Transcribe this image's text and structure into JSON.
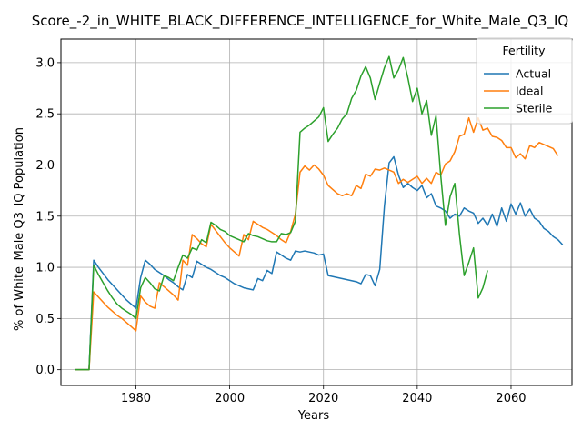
{
  "chart_data": {
    "type": "line",
    "title": "Score_-2_in_WHITE_BLACK_DIFFERENCE_INTELLIGENCE_for_White_Male_Q3_IQ",
    "xlabel": "Years",
    "ylabel": "% of White_Male Q3_IQ Population",
    "xlim": [
      1964,
      2073
    ],
    "ylim": [
      -0.154,
      3.23
    ],
    "xticks": [
      1980,
      2000,
      2020,
      2040,
      2060
    ],
    "yticks": [
      0.0,
      0.5,
      1.0,
      1.5,
      2.0,
      2.5,
      3.0
    ],
    "xtick_labels": [
      "1980",
      "2000",
      "2020",
      "2040",
      "2060"
    ],
    "ytick_labels": [
      "0.0",
      "0.5",
      "1.0",
      "1.5",
      "2.0",
      "2.5",
      "3.0"
    ],
    "grid": true,
    "legend": {
      "title": "Fertility",
      "placement": "upper-right"
    },
    "series": [
      {
        "name": "Actual",
        "color": "#1f77b4",
        "points": [
          [
            1967,
            0.0
          ],
          [
            1968,
            0.0
          ],
          [
            1969,
            0.0
          ],
          [
            1970,
            0.0
          ],
          [
            1971,
            1.07
          ],
          [
            1972,
            1.0
          ],
          [
            1973,
            0.94
          ],
          [
            1974,
            0.88
          ],
          [
            1975,
            0.83
          ],
          [
            1976,
            0.78
          ],
          [
            1977,
            0.73
          ],
          [
            1978,
            0.68
          ],
          [
            1979,
            0.64
          ],
          [
            1980,
            0.6
          ],
          [
            1981,
            0.9
          ],
          [
            1982,
            1.07
          ],
          [
            1983,
            1.03
          ],
          [
            1984,
            0.98
          ],
          [
            1985,
            0.95
          ],
          [
            1986,
            0.92
          ],
          [
            1987,
            0.88
          ],
          [
            1988,
            0.85
          ],
          [
            1989,
            0.81
          ],
          [
            1990,
            0.78
          ],
          [
            1991,
            0.93
          ],
          [
            1992,
            0.9
          ],
          [
            1993,
            1.06
          ],
          [
            1994,
            1.03
          ],
          [
            1995,
            1.0
          ],
          [
            1996,
            0.98
          ],
          [
            1997,
            0.95
          ],
          [
            1998,
            0.92
          ],
          [
            1999,
            0.9
          ],
          [
            2000,
            0.87
          ],
          [
            2001,
            0.84
          ],
          [
            2002,
            0.82
          ],
          [
            2003,
            0.8
          ],
          [
            2004,
            0.79
          ],
          [
            2005,
            0.78
          ],
          [
            2006,
            0.89
          ],
          [
            2007,
            0.87
          ],
          [
            2008,
            0.97
          ],
          [
            2009,
            0.94
          ],
          [
            2010,
            1.15
          ],
          [
            2011,
            1.12
          ],
          [
            2012,
            1.09
          ],
          [
            2013,
            1.07
          ],
          [
            2014,
            1.16
          ],
          [
            2015,
            1.15
          ],
          [
            2016,
            1.16
          ],
          [
            2017,
            1.15
          ],
          [
            2018,
            1.14
          ],
          [
            2019,
            1.12
          ],
          [
            2020,
            1.13
          ],
          [
            2021,
            0.92
          ],
          [
            2022,
            0.91
          ],
          [
            2023,
            0.9
          ],
          [
            2024,
            0.89
          ],
          [
            2025,
            0.88
          ],
          [
            2026,
            0.87
          ],
          [
            2027,
            0.86
          ],
          [
            2028,
            0.84
          ],
          [
            2029,
            0.93
          ],
          [
            2030,
            0.92
          ],
          [
            2031,
            0.82
          ],
          [
            2032,
            0.98
          ],
          [
            2033,
            1.6
          ],
          [
            2034,
            2.02
          ],
          [
            2035,
            2.08
          ],
          [
            2036,
            1.9
          ],
          [
            2037,
            1.78
          ],
          [
            2038,
            1.82
          ],
          [
            2039,
            1.78
          ],
          [
            2040,
            1.75
          ],
          [
            2041,
            1.8
          ],
          [
            2042,
            1.68
          ],
          [
            2043,
            1.72
          ],
          [
            2044,
            1.6
          ],
          [
            2045,
            1.58
          ],
          [
            2046,
            1.55
          ],
          [
            2047,
            1.48
          ],
          [
            2048,
            1.52
          ],
          [
            2049,
            1.5
          ],
          [
            2050,
            1.58
          ],
          [
            2051,
            1.55
          ],
          [
            2052,
            1.53
          ],
          [
            2053,
            1.43
          ],
          [
            2054,
            1.48
          ],
          [
            2055,
            1.41
          ],
          [
            2056,
            1.52
          ],
          [
            2057,
            1.4
          ],
          [
            2058,
            1.58
          ],
          [
            2059,
            1.45
          ],
          [
            2060,
            1.62
          ],
          [
            2061,
            1.52
          ],
          [
            2062,
            1.63
          ],
          [
            2063,
            1.5
          ],
          [
            2064,
            1.57
          ],
          [
            2065,
            1.48
          ],
          [
            2066,
            1.45
          ],
          [
            2067,
            1.38
          ],
          [
            2068,
            1.35
          ],
          [
            2069,
            1.3
          ],
          [
            2070,
            1.27
          ],
          [
            2071,
            1.22
          ]
        ]
      },
      {
        "name": "Ideal",
        "color": "#ff7f0e",
        "points": [
          [
            1967,
            0.0
          ],
          [
            1968,
            0.0
          ],
          [
            1969,
            0.0
          ],
          [
            1970,
            0.0
          ],
          [
            1971,
            0.76
          ],
          [
            1972,
            0.71
          ],
          [
            1973,
            0.66
          ],
          [
            1974,
            0.61
          ],
          [
            1975,
            0.57
          ],
          [
            1976,
            0.53
          ],
          [
            1977,
            0.5
          ],
          [
            1978,
            0.46
          ],
          [
            1979,
            0.42
          ],
          [
            1980,
            0.38
          ],
          [
            1981,
            0.72
          ],
          [
            1982,
            0.66
          ],
          [
            1983,
            0.62
          ],
          [
            1984,
            0.6
          ],
          [
            1985,
            0.85
          ],
          [
            1986,
            0.81
          ],
          [
            1987,
            0.77
          ],
          [
            1988,
            0.73
          ],
          [
            1989,
            0.68
          ],
          [
            1990,
            1.07
          ],
          [
            1991,
            1.02
          ],
          [
            1992,
            1.32
          ],
          [
            1993,
            1.28
          ],
          [
            1994,
            1.23
          ],
          [
            1995,
            1.2
          ],
          [
            1996,
            1.42
          ],
          [
            1997,
            1.36
          ],
          [
            1998,
            1.3
          ],
          [
            1999,
            1.24
          ],
          [
            2000,
            1.19
          ],
          [
            2001,
            1.15
          ],
          [
            2002,
            1.11
          ],
          [
            2003,
            1.32
          ],
          [
            2004,
            1.27
          ],
          [
            2005,
            1.45
          ],
          [
            2006,
            1.42
          ],
          [
            2007,
            1.39
          ],
          [
            2008,
            1.37
          ],
          [
            2009,
            1.34
          ],
          [
            2010,
            1.31
          ],
          [
            2011,
            1.27
          ],
          [
            2012,
            1.24
          ],
          [
            2013,
            1.35
          ],
          [
            2014,
            1.52
          ],
          [
            2015,
            1.93
          ],
          [
            2016,
            1.99
          ],
          [
            2017,
            1.95
          ],
          [
            2018,
            2.0
          ],
          [
            2019,
            1.96
          ],
          [
            2020,
            1.9
          ],
          [
            2021,
            1.8
          ],
          [
            2022,
            1.76
          ],
          [
            2023,
            1.72
          ],
          [
            2024,
            1.7
          ],
          [
            2025,
            1.72
          ],
          [
            2026,
            1.7
          ],
          [
            2027,
            1.8
          ],
          [
            2028,
            1.77
          ],
          [
            2029,
            1.91
          ],
          [
            2030,
            1.89
          ],
          [
            2031,
            1.96
          ],
          [
            2032,
            1.95
          ],
          [
            2033,
            1.97
          ],
          [
            2034,
            1.95
          ],
          [
            2035,
            1.93
          ],
          [
            2036,
            1.82
          ],
          [
            2037,
            1.86
          ],
          [
            2038,
            1.83
          ],
          [
            2039,
            1.86
          ],
          [
            2040,
            1.89
          ],
          [
            2041,
            1.82
          ],
          [
            2042,
            1.87
          ],
          [
            2043,
            1.82
          ],
          [
            2044,
            1.93
          ],
          [
            2045,
            1.9
          ],
          [
            2046,
            2.01
          ],
          [
            2047,
            2.04
          ],
          [
            2048,
            2.13
          ],
          [
            2049,
            2.28
          ],
          [
            2050,
            2.3
          ],
          [
            2051,
            2.46
          ],
          [
            2052,
            2.32
          ],
          [
            2053,
            2.46
          ],
          [
            2054,
            2.34
          ],
          [
            2055,
            2.36
          ],
          [
            2056,
            2.28
          ],
          [
            2057,
            2.27
          ],
          [
            2058,
            2.24
          ],
          [
            2059,
            2.17
          ],
          [
            2060,
            2.17
          ],
          [
            2061,
            2.07
          ],
          [
            2062,
            2.11
          ],
          [
            2063,
            2.06
          ],
          [
            2064,
            2.19
          ],
          [
            2065,
            2.17
          ],
          [
            2066,
            2.22
          ],
          [
            2067,
            2.2
          ],
          [
            2068,
            2.18
          ],
          [
            2069,
            2.16
          ],
          [
            2070,
            2.09
          ]
        ]
      },
      {
        "name": "Sterile",
        "color": "#2ca02c",
        "points": [
          [
            1967,
            0.0
          ],
          [
            1968,
            0.0
          ],
          [
            1969,
            0.0
          ],
          [
            1970,
            0.0
          ],
          [
            1971,
            1.02
          ],
          [
            1972,
            0.93
          ],
          [
            1973,
            0.85
          ],
          [
            1974,
            0.77
          ],
          [
            1975,
            0.7
          ],
          [
            1976,
            0.64
          ],
          [
            1977,
            0.6
          ],
          [
            1978,
            0.57
          ],
          [
            1979,
            0.54
          ],
          [
            1980,
            0.5
          ],
          [
            1981,
            0.8
          ],
          [
            1982,
            0.9
          ],
          [
            1983,
            0.85
          ],
          [
            1984,
            0.79
          ],
          [
            1985,
            0.77
          ],
          [
            1986,
            0.92
          ],
          [
            1987,
            0.9
          ],
          [
            1988,
            0.87
          ],
          [
            1989,
            1.0
          ],
          [
            1990,
            1.12
          ],
          [
            1991,
            1.09
          ],
          [
            1992,
            1.19
          ],
          [
            1993,
            1.17
          ],
          [
            1994,
            1.27
          ],
          [
            1995,
            1.24
          ],
          [
            1996,
            1.44
          ],
          [
            1997,
            1.41
          ],
          [
            1998,
            1.37
          ],
          [
            1999,
            1.35
          ],
          [
            2000,
            1.31
          ],
          [
            2001,
            1.29
          ],
          [
            2002,
            1.27
          ],
          [
            2003,
            1.25
          ],
          [
            2004,
            1.33
          ],
          [
            2005,
            1.31
          ],
          [
            2006,
            1.3
          ],
          [
            2007,
            1.28
          ],
          [
            2008,
            1.26
          ],
          [
            2009,
            1.25
          ],
          [
            2010,
            1.25
          ],
          [
            2011,
            1.33
          ],
          [
            2012,
            1.32
          ],
          [
            2013,
            1.34
          ],
          [
            2014,
            1.45
          ],
          [
            2015,
            2.32
          ],
          [
            2016,
            2.36
          ],
          [
            2017,
            2.39
          ],
          [
            2018,
            2.43
          ],
          [
            2019,
            2.47
          ],
          [
            2020,
            2.56
          ],
          [
            2021,
            2.23
          ],
          [
            2022,
            2.3
          ],
          [
            2023,
            2.36
          ],
          [
            2024,
            2.45
          ],
          [
            2025,
            2.5
          ],
          [
            2026,
            2.65
          ],
          [
            2027,
            2.73
          ],
          [
            2028,
            2.87
          ],
          [
            2029,
            2.96
          ],
          [
            2030,
            2.85
          ],
          [
            2031,
            2.64
          ],
          [
            2032,
            2.8
          ],
          [
            2033,
            2.95
          ],
          [
            2034,
            3.06
          ],
          [
            2035,
            2.85
          ],
          [
            2036,
            2.93
          ],
          [
            2037,
            3.05
          ],
          [
            2038,
            2.85
          ],
          [
            2039,
            2.62
          ],
          [
            2040,
            2.75
          ],
          [
            2041,
            2.5
          ],
          [
            2042,
            2.63
          ],
          [
            2043,
            2.29
          ],
          [
            2044,
            2.48
          ],
          [
            2045,
            1.9
          ],
          [
            2046,
            1.41
          ],
          [
            2047,
            1.69
          ],
          [
            2048,
            1.82
          ],
          [
            2049,
            1.32
          ],
          [
            2050,
            0.92
          ],
          [
            2051,
            1.05
          ],
          [
            2052,
            1.19
          ],
          [
            2053,
            0.7
          ],
          [
            2054,
            0.8
          ],
          [
            2055,
            0.97
          ]
        ]
      }
    ]
  }
}
